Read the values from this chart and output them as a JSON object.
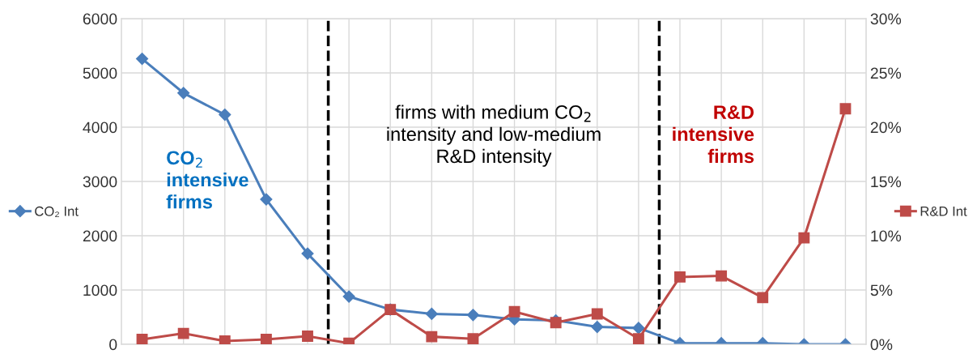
{
  "chart_data": {
    "type": "line",
    "categories": [
      null,
      null,
      null,
      null,
      null,
      null,
      null,
      null,
      null,
      null,
      null,
      null,
      null,
      null,
      null,
      null,
      null,
      null
    ],
    "series": [
      {
        "name": "CO₂ Int",
        "color": "#4a7ebb",
        "marker": "diamond",
        "values": [
          5260,
          4630,
          4230,
          2670,
          1670,
          880,
          640,
          560,
          540,
          460,
          440,
          320,
          300,
          20,
          20,
          20,
          0,
          0
        ]
      },
      {
        "name": "R&D Int",
        "color": "#be4b48",
        "marker": "square",
        "axis": "y2",
        "values": [
          0.45,
          1.0,
          0.3,
          0.45,
          0.75,
          0.1,
          3.2,
          0.7,
          0.5,
          3.0,
          2.0,
          2.8,
          0.5,
          6.2,
          6.3,
          4.3,
          9.8,
          21.7
        ]
      }
    ],
    "ylim": [
      0,
      6000
    ],
    "yticks": [
      0,
      1000,
      2000,
      3000,
      4000,
      5000,
      6000
    ],
    "y2lim": [
      0,
      30
    ],
    "y2ticks": [
      {
        "value": 0,
        "label": "0%"
      },
      {
        "value": 5,
        "label": "5%"
      },
      {
        "value": 10,
        "label": "10%"
      },
      {
        "value": 15,
        "label": "15%"
      },
      {
        "value": 20,
        "label": "20%"
      },
      {
        "value": 25,
        "label": "25%"
      },
      {
        "value": 30,
        "label": "30%"
      }
    ],
    "annotations": [
      "CO$_{2}$\nintensive\nfirms",
      "firms with medium CO$_{2}$\nintensity and low-medium\nR&D intensity",
      "R&D\nintensive\nfirms"
    ],
    "grid": true,
    "legend": "left",
    "line_style": "solid"
  }
}
